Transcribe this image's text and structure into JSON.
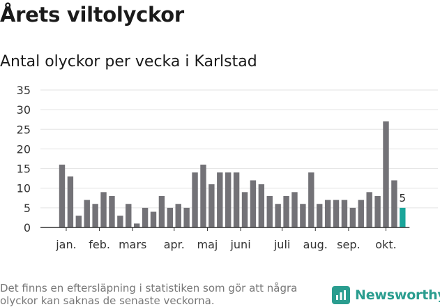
{
  "header": {
    "title": "Årets viltolyckor",
    "subtitle": "Antal olyckor per vecka i Karlstad"
  },
  "footer": {
    "note": "Det finns en eftersläpning i statistiken som gör att några olyckor kan saknas de senaste veckorna.",
    "logo_text": "Newsworthy"
  },
  "colors": {
    "bar": "#737277",
    "highlight": "#1aa59a",
    "grid": "#e3e3e3",
    "logo": "#2a9d8f"
  },
  "chart_data": {
    "type": "bar",
    "title": "Antal olyckor per vecka i Karlstad",
    "ylim": [
      0,
      35
    ],
    "yticks": [
      0,
      5,
      10,
      15,
      20,
      25,
      30,
      35
    ],
    "grid": true,
    "values": [
      16,
      13,
      3,
      7,
      6,
      9,
      8,
      3,
      6,
      1,
      5,
      4,
      8,
      5,
      6,
      5,
      14,
      16,
      11,
      14,
      14,
      14,
      9,
      12,
      11,
      8,
      6,
      8,
      9,
      6,
      14,
      6,
      7,
      7,
      7,
      5,
      7,
      9,
      8,
      27,
      12,
      5
    ],
    "month_labels": [
      {
        "label": "jan.",
        "bar_index": 0.5
      },
      {
        "label": "feb.",
        "bar_index": 4.5
      },
      {
        "label": "mars",
        "bar_index": 8.5
      },
      {
        "label": "apr.",
        "bar_index": 13.5
      },
      {
        "label": "maj",
        "bar_index": 17.5
      },
      {
        "label": "juni",
        "bar_index": 21.5
      },
      {
        "label": "juli",
        "bar_index": 26.5
      },
      {
        "label": "aug.",
        "bar_index": 30.5
      },
      {
        "label": "sep.",
        "bar_index": 34.5
      },
      {
        "label": "okt.",
        "bar_index": 39.0
      }
    ],
    "highlight_index": 41,
    "highlight_label": "5"
  }
}
